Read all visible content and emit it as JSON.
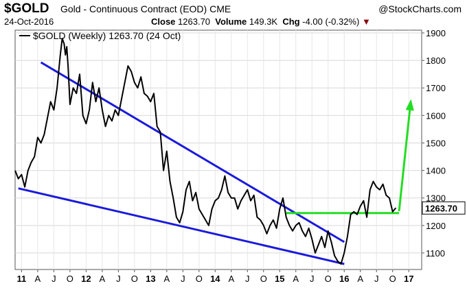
{
  "header": {
    "symbol": "$GOLD",
    "description": "Gold - Continuous Contract (EOD)",
    "exchange": "CME",
    "date": "24-Oct-2016",
    "close_label": "Close",
    "close_value": "1263.70",
    "volume_label": "Volume",
    "volume_value": "149.3K",
    "chg_label": "Chg",
    "chg_value": "-4.00 (-0.32%)",
    "brand": "@StockCharts.com"
  },
  "chart_data": {
    "type": "line",
    "title": "$GOLD (Weekly) 1263.70 (24 Oct)",
    "legend_text": "$GOLD (Weekly) 1263.70 (24 Oct)",
    "x_ticks": [
      "11",
      "A",
      "J",
      "O",
      "12",
      "A",
      "J",
      "O",
      "13",
      "A",
      "J",
      "O",
      "14",
      "A",
      "J",
      "O",
      "15",
      "A",
      "J",
      "O",
      "16",
      "A",
      "J",
      "O",
      "17"
    ],
    "y_ticks": [
      1100,
      1200,
      1300,
      1400,
      1500,
      1600,
      1700,
      1800,
      1900
    ],
    "ylim": [
      1040,
      1910
    ],
    "xlim": [
      2010.9,
      2017.2
    ],
    "last_value_label": "1263.70",
    "series": [
      {
        "color": "#000000",
        "x": [
          2010.9,
          2010.95,
          2011.0,
          2011.05,
          2011.1,
          2011.15,
          2011.2,
          2011.25,
          2011.3,
          2011.35,
          2011.4,
          2011.45,
          2011.5,
          2011.55,
          2011.6,
          2011.63,
          2011.66,
          2011.68,
          2011.7,
          2011.72,
          2011.75,
          2011.8,
          2011.85,
          2011.9,
          2011.95,
          2012.0,
          2012.05,
          2012.1,
          2012.15,
          2012.2,
          2012.25,
          2012.3,
          2012.35,
          2012.4,
          2012.45,
          2012.5,
          2012.55,
          2012.6,
          2012.65,
          2012.7,
          2012.75,
          2012.8,
          2012.85,
          2012.9,
          2012.95,
          2013.0,
          2013.05,
          2013.1,
          2013.15,
          2013.2,
          2013.25,
          2013.3,
          2013.35,
          2013.4,
          2013.45,
          2013.5,
          2013.55,
          2013.6,
          2013.65,
          2013.7,
          2013.75,
          2013.8,
          2013.85,
          2013.9,
          2013.95,
          2014.0,
          2014.05,
          2014.1,
          2014.15,
          2014.2,
          2014.25,
          2014.3,
          2014.35,
          2014.4,
          2014.45,
          2014.5,
          2014.55,
          2014.6,
          2014.65,
          2014.7,
          2014.75,
          2014.8,
          2014.85,
          2014.9,
          2014.95,
          2015.0,
          2015.05,
          2015.1,
          2015.15,
          2015.2,
          2015.25,
          2015.3,
          2015.35,
          2015.4,
          2015.45,
          2015.5,
          2015.55,
          2015.6,
          2015.65,
          2015.7,
          2015.75,
          2015.8,
          2015.85,
          2015.9,
          2015.95,
          2016.0,
          2016.05,
          2016.1,
          2016.15,
          2016.2,
          2016.25,
          2016.3,
          2016.35,
          2016.4,
          2016.45,
          2016.5,
          2016.55,
          2016.6,
          2016.65,
          2016.7,
          2016.75,
          2016.8
        ],
        "values": [
          1400,
          1370,
          1385,
          1340,
          1400,
          1430,
          1450,
          1520,
          1500,
          1530,
          1590,
          1650,
          1620,
          1700,
          1820,
          1880,
          1860,
          1820,
          1850,
          1780,
          1640,
          1700,
          1680,
          1750,
          1600,
          1570,
          1620,
          1720,
          1650,
          1700,
          1620,
          1560,
          1600,
          1580,
          1620,
          1600,
          1660,
          1720,
          1780,
          1760,
          1720,
          1700,
          1740,
          1680,
          1670,
          1650,
          1680,
          1560,
          1540,
          1400,
          1470,
          1360,
          1300,
          1230,
          1210,
          1250,
          1330,
          1360,
          1290,
          1320,
          1260,
          1240,
          1220,
          1200,
          1260,
          1290,
          1300,
          1330,
          1380,
          1320,
          1300,
          1300,
          1260,
          1290,
          1310,
          1330,
          1290,
          1310,
          1230,
          1220,
          1200,
          1170,
          1200,
          1220,
          1190,
          1260,
          1300,
          1230,
          1200,
          1180,
          1200,
          1210,
          1180,
          1160,
          1190,
          1150,
          1100,
          1130,
          1160,
          1120,
          1180,
          1140,
          1090,
          1070,
          1060,
          1100,
          1160,
          1240,
          1250,
          1240,
          1270,
          1290,
          1230,
          1330,
          1360,
          1340,
          1330,
          1350,
          1310,
          1300,
          1250,
          1264
        ]
      }
    ],
    "trendlines": [
      {
        "color": "#1a1adb",
        "from": [
          2011.3,
          1793
        ],
        "to": [
          2016.0,
          1140
        ]
      },
      {
        "color": "#1a1adb",
        "from": [
          2010.95,
          1335
        ],
        "to": [
          2016.0,
          1060
        ]
      },
      {
        "color": "#22dd22",
        "from": [
          2015.1,
          1245
        ],
        "to": [
          2016.85,
          1245
        ]
      },
      {
        "color": "#22dd22",
        "from": [
          2016.85,
          1252
        ],
        "to": [
          2017.03,
          1650
        ],
        "arrow": true
      }
    ]
  }
}
